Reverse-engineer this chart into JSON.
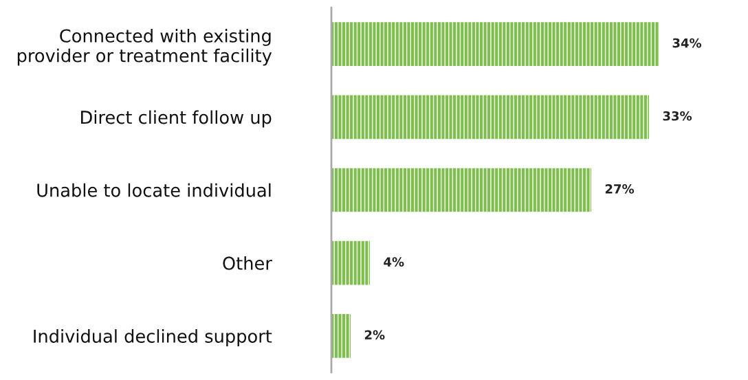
{
  "chart_data": {
    "type": "bar",
    "orientation": "horizontal",
    "categories": [
      "Connected with existing\nprovider or treatment facility",
      "Direct client follow up",
      "Unable to locate individual",
      "Other",
      "Individual declined support"
    ],
    "values": [
      34,
      33,
      27,
      4,
      2
    ],
    "value_labels": [
      "34%",
      "33%",
      "27%",
      "4%",
      "2%"
    ],
    "color": "#7cbf4a",
    "tick_labels": "y",
    "grid": false,
    "legend": false
  }
}
